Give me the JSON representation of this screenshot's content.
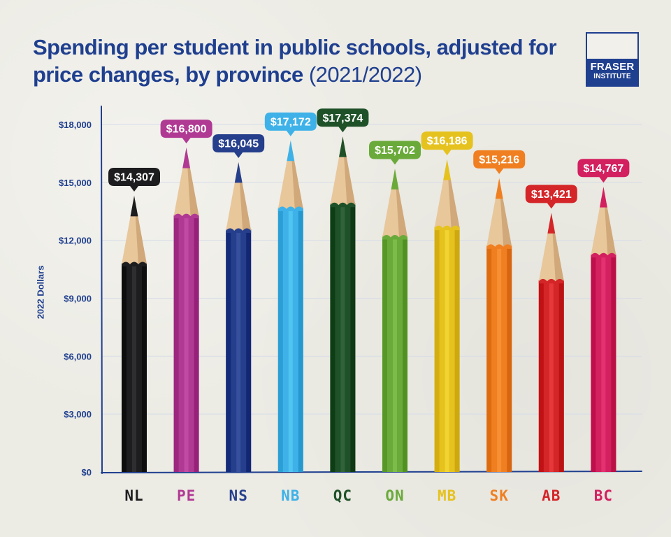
{
  "header": {
    "title_main": "Spending per student in public schools, adjusted for price changes, by province",
    "title_year": "(2021/2022)"
  },
  "logo": {
    "line1": "FRASER",
    "line2": "INSTITUTE"
  },
  "colors": {
    "title": "#1f3f8f",
    "axis": "#1f3f8f",
    "background": "#ecebe4"
  },
  "chart_data": {
    "type": "bar",
    "title": "Spending per student in public schools, adjusted for price changes, by province (2021/2022)",
    "xlabel": "",
    "ylabel": "2022 Dollars",
    "ylim": [
      0,
      18000
    ],
    "yticks": [
      0,
      3000,
      6000,
      9000,
      12000,
      15000,
      18000
    ],
    "ytick_labels": [
      "$0",
      "$3,000",
      "$6,000",
      "$9,000",
      "$12,000",
      "$15,000",
      "$18,000"
    ],
    "categories": [
      "NL",
      "PE",
      "NS",
      "NB",
      "QC",
      "ON",
      "MB",
      "SK",
      "AB",
      "BC"
    ],
    "values": [
      14307,
      16800,
      16045,
      17172,
      17374,
      15702,
      16186,
      15216,
      13421,
      14767
    ],
    "data_labels": [
      "$14,307",
      "$16,800",
      "$16,045",
      "$17,172",
      "$17,374",
      "$15,702",
      "$16,186",
      "$15,216",
      "$13,421",
      "$14,767"
    ],
    "series_colors": [
      "#1d1d1f",
      "#b03a93",
      "#263f8c",
      "#3eb2e8",
      "#1e5128",
      "#6aaa3a",
      "#e6c21f",
      "#f07f21",
      "#d42528",
      "#d3205f"
    ],
    "grid": true
  }
}
